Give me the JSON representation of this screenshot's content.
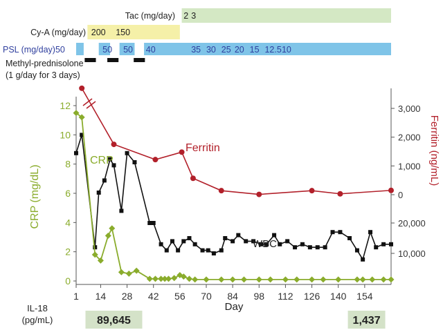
{
  "chart_data": {
    "type": "line",
    "xlabel": "Day",
    "x_ticks": [
      1,
      14,
      28,
      42,
      56,
      70,
      84,
      98,
      112,
      126,
      140,
      154
    ],
    "xlim": [
      1,
      168
    ],
    "colors": {
      "crp": "#8aac2c",
      "ferritin": "#b2202a",
      "wbc": "#111111",
      "psl_bar": "#7fc4e8",
      "cya_bar": "#f5f0a8",
      "tac_bar": "#d4e8c4",
      "il18_box": "#d4e2c8",
      "pulse": "#111111"
    },
    "left_axis": {
      "label": "CRP (mg/dL)",
      "ticks": [
        0,
        2,
        4,
        6,
        8,
        10,
        12
      ],
      "range": [
        0,
        12.8
      ]
    },
    "ferritin_axis": {
      "label": "Ferritin (ng/mL)",
      "ticks": [
        0,
        1000,
        2000,
        3000
      ],
      "tick_labels": [
        "0",
        "1,000",
        "2,000",
        "3,000"
      ],
      "range": [
        0,
        3600
      ]
    },
    "wbc_axis": {
      "ticks": [
        10000,
        20000
      ],
      "tick_labels": [
        "10,000",
        "20,000"
      ]
    },
    "series": [
      {
        "name": "CRP",
        "axis": "left",
        "marker": "diamond",
        "x": [
          1,
          4,
          11,
          14,
          18,
          20,
          25,
          29,
          33,
          40,
          43,
          46,
          48,
          50,
          53,
          56,
          58,
          61,
          64,
          70,
          78,
          84,
          90,
          98,
          104,
          112,
          118,
          126,
          132,
          140,
          150,
          153,
          158,
          164,
          168
        ],
        "y": [
          11.5,
          11.2,
          1.8,
          1.4,
          3.1,
          3.6,
          0.6,
          0.5,
          0.7,
          0.15,
          0.15,
          0.15,
          0.15,
          0.15,
          0.2,
          0.4,
          0.3,
          0.15,
          0.1,
          0.1,
          0.1,
          0.1,
          0.1,
          0.1,
          0.1,
          0.1,
          0.1,
          0.1,
          0.1,
          0.1,
          0.1,
          0.1,
          0.1,
          0.1,
          0.1
        ]
      },
      {
        "name": "Ferritin",
        "axis": "right",
        "marker": "circle",
        "x": [
          4,
          21,
          43,
          57,
          63,
          78,
          98,
          126,
          141,
          168
        ],
        "y": [
          3700,
          1750,
          1220,
          1480,
          570,
          140,
          10,
          140,
          30,
          150
        ]
      },
      {
        "name": "WBC",
        "axis": "right",
        "marker": "square",
        "x": [
          1,
          4,
          11,
          13,
          16,
          19,
          21,
          25,
          28,
          32,
          40,
          42,
          46,
          49,
          52,
          55,
          58,
          61,
          64,
          68,
          71,
          74,
          78,
          80,
          84,
          87,
          91,
          95,
          99,
          102,
          106,
          109,
          113,
          117,
          121,
          125,
          129,
          133,
          137,
          141,
          146,
          150,
          153,
          157,
          160,
          164,
          168
        ],
        "y": [
          4.3,
          4.9,
          1.2,
          3.0,
          3.4,
          4.1,
          3.9,
          2.4,
          4.3,
          4.0,
          2.0,
          2.0,
          1.3,
          1.1,
          1.4,
          1.1,
          1.4,
          1.5,
          1.3,
          1.1,
          1.1,
          1.0,
          1.1,
          1.5,
          1.4,
          1.6,
          1.4,
          1.4,
          1.3,
          1.3,
          1.6,
          1.3,
          1.4,
          1.2,
          1.3,
          1.2,
          1.2,
          1.2,
          1.7,
          1.7,
          1.5,
          1.1,
          0.8,
          1.7,
          1.2,
          1.3,
          1.3
        ]
      }
    ],
    "annotations": [
      "CRP",
      "Ferritin",
      "WBC"
    ],
    "treatment_bars": {
      "tac": {
        "label": "Tac (mg/day)",
        "start": 57,
        "end": 168,
        "doses": [
          {
            "day": 58,
            "text": "2"
          },
          {
            "day": 62,
            "text": "3"
          }
        ]
      },
      "cya": {
        "label": "Cy-A (mg/day)",
        "start": 7,
        "end": 56,
        "doses": [
          {
            "day": 9,
            "text": "200"
          },
          {
            "day": 22,
            "text": "150"
          }
        ]
      },
      "psl": {
        "label": "PSL (mg/day)50",
        "segments": [
          [
            1,
            5
          ],
          [
            13,
            19
          ],
          [
            24,
            32
          ],
          [
            37,
            168
          ]
        ],
        "doses": [
          {
            "day": 15,
            "text": "50"
          },
          {
            "day": 26,
            "text": "50"
          },
          {
            "day": 38,
            "text": "40"
          },
          {
            "day": 62,
            "text": "35"
          },
          {
            "day": 70,
            "text": "30"
          },
          {
            "day": 78,
            "text": "25"
          },
          {
            "day": 85,
            "text": "20"
          },
          {
            "day": 93,
            "text": "15"
          },
          {
            "day": 101,
            "text": "12.5"
          },
          {
            "day": 110,
            "text": "10"
          }
        ]
      },
      "methylpred": {
        "label_line1": "Methyl-prednisolone",
        "label_line2": "(1 g/day for 3 days)",
        "pulses": [
          [
            7,
            10
          ],
          [
            19,
            22
          ],
          [
            33,
            36
          ]
        ]
      }
    },
    "il18": {
      "label_line1": "IL-18",
      "label_line2": "(pg/mL)",
      "values": [
        {
          "day": 21,
          "text": "89,645"
        },
        {
          "day": 155,
          "text": "1,437"
        }
      ]
    }
  }
}
